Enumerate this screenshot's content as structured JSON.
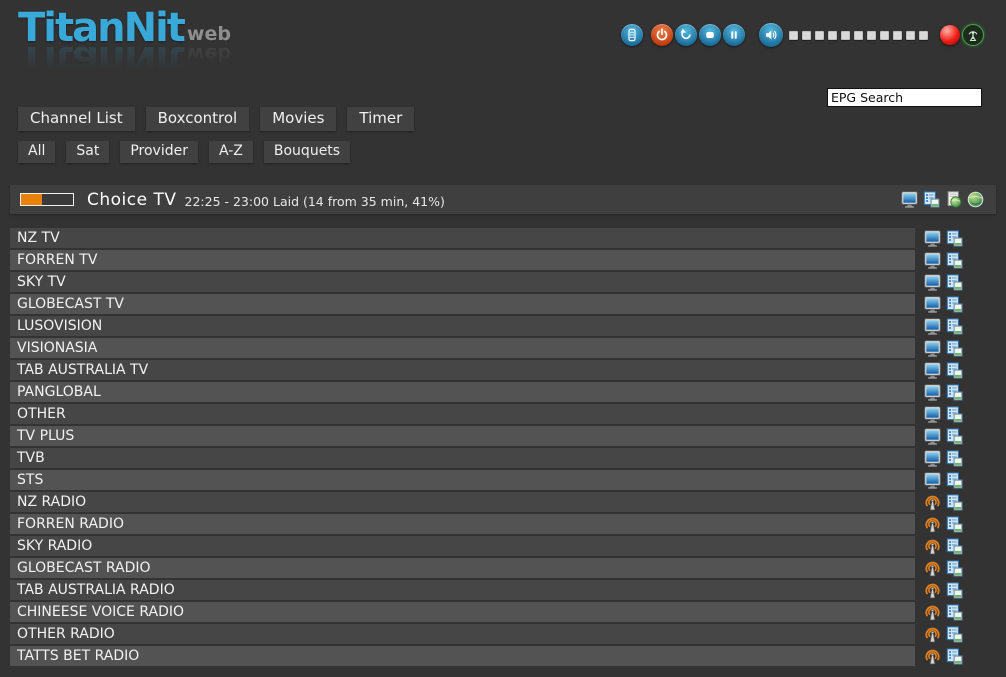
{
  "app": {
    "title": "TitanNit",
    "title_suffix": "web"
  },
  "header": {
    "controls": [
      {
        "name": "remote-control-icon"
      },
      {
        "name": "power-icon"
      },
      {
        "name": "refresh-icon"
      },
      {
        "name": "stop-icon"
      },
      {
        "name": "pause-icon"
      },
      {
        "name": "volume-icon"
      },
      {
        "name": "record-indicator"
      },
      {
        "name": "signal-icon"
      }
    ],
    "volume": {
      "segments": 11
    },
    "epg_search_value": "EPG Search"
  },
  "nav": {
    "main": [
      "Channel List",
      "Boxcontrol",
      "Movies",
      "Timer"
    ],
    "filters": [
      "All",
      "Sat",
      "Provider",
      "A-Z",
      "Bouquets"
    ]
  },
  "now_playing": {
    "channel": "Choice TV",
    "epg_info": "22:25 - 23:00 Laid (14 from 35 min, 41%)",
    "progress_percent": 41,
    "actions": [
      "monitor-icon",
      "screens-copy-icon",
      "document-globe-icon",
      "globe-icon"
    ]
  },
  "channels": [
    {
      "name": "NZ TV",
      "type": "tv"
    },
    {
      "name": "FORREN TV",
      "type": "tv"
    },
    {
      "name": "SKY TV",
      "type": "tv"
    },
    {
      "name": "GLOBECAST TV",
      "type": "tv"
    },
    {
      "name": "LUSOVISION",
      "type": "tv"
    },
    {
      "name": "VISIONASIA",
      "type": "tv"
    },
    {
      "name": "TAB AUSTRALIA TV",
      "type": "tv"
    },
    {
      "name": "PANGLOBAL",
      "type": "tv"
    },
    {
      "name": "OTHER",
      "type": "tv"
    },
    {
      "name": "TV PLUS",
      "type": "tv"
    },
    {
      "name": "TVB",
      "type": "tv"
    },
    {
      "name": "STS",
      "type": "tv"
    },
    {
      "name": "NZ RADIO",
      "type": "radio"
    },
    {
      "name": "FORREN RADIO",
      "type": "radio"
    },
    {
      "name": "SKY RADIO",
      "type": "radio"
    },
    {
      "name": "GLOBECAST RADIO",
      "type": "radio"
    },
    {
      "name": "TAB AUSTRALIA RADIO",
      "type": "radio"
    },
    {
      "name": "CHINEESE VOICE RADIO",
      "type": "radio"
    },
    {
      "name": "OTHER RADIO",
      "type": "radio"
    },
    {
      "name": "TATTS BET RADIO",
      "type": "radio"
    }
  ],
  "colors": {
    "background": "#333333",
    "row_odd": "#464646",
    "row_even": "#535353",
    "accent_cyan": "#38a9d9",
    "progress_orange": "#e8820a",
    "record_red": "#f01d14",
    "control_blue": "#1d6f9c",
    "power_red": "#c23c10",
    "signal_green": "#3fae3f"
  }
}
